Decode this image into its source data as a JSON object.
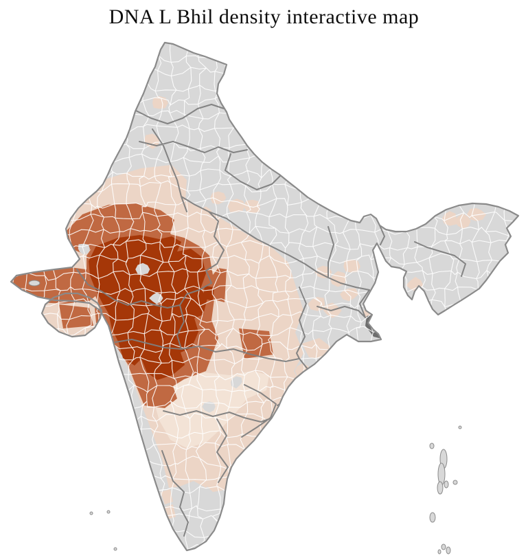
{
  "title": "DNA L Bhil density interactive map",
  "map": {
    "type": "choropleth",
    "region": "India (district level)",
    "density_levels": [
      {
        "level": "high",
        "color": "#a53708"
      },
      {
        "level": "medium",
        "color": "#c06942"
      },
      {
        "level": "low",
        "color": "#ecd5c6"
      },
      {
        "level": "very-low",
        "color": "#f3e3d6"
      },
      {
        "level": "none",
        "color": "#d8d8d8"
      },
      {
        "level": "excluded",
        "color": "#6e6e6e"
      }
    ],
    "border_colors": {
      "district": "#ffffff",
      "state": "#7e7e7e",
      "country": "#8a8a8a"
    },
    "background": "#ffffff",
    "title_color": "#0d0d0d"
  }
}
